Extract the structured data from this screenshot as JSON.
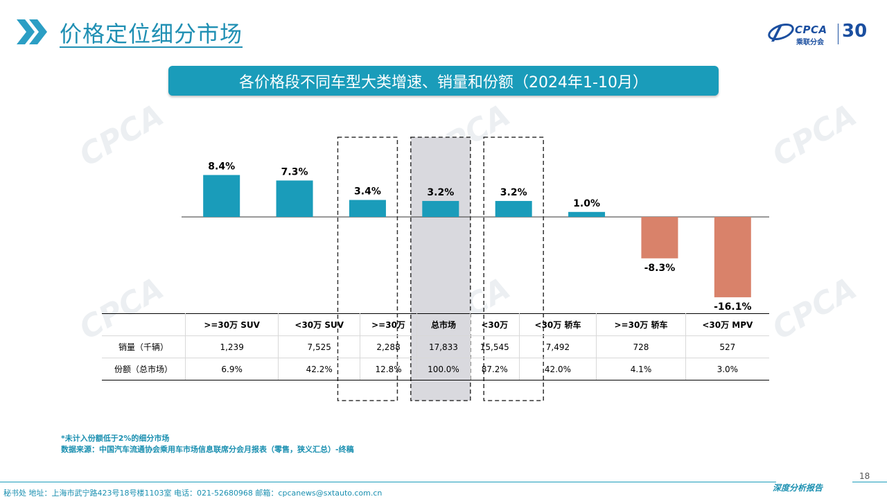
{
  "header": {
    "title": "价格定位细分市场",
    "logo_text": "CPCA",
    "logo_sub": "乘联分会",
    "anniversary": "30"
  },
  "watermark_text": "CPCA",
  "chart_data": {
    "type": "bar",
    "title": "各价格段不同车型大类增速、销量和份额（2024年1-10月）",
    "categories": [
      ">=30万 SUV",
      "<30万 SUV",
      ">=30万",
      "总市场",
      "<30万",
      "<30万 轿车",
      ">=30万 轿车",
      "<30万 MPV"
    ],
    "values": [
      8.4,
      7.3,
      3.4,
      3.2,
      3.2,
      1.0,
      -8.3,
      -16.1
    ],
    "value_labels": [
      "8.4%",
      "7.3%",
      "3.4%",
      "3.2%",
      "3.2%",
      "1.0%",
      "-8.3%",
      "-16.1%"
    ],
    "unit": "%",
    "highlighted_columns": [
      ">=30万",
      "总市场",
      "<30万"
    ],
    "colors": {
      "positive": "#1a9cba",
      "negative": "#d9826a",
      "highlight_fill": "#d9d9de"
    },
    "grid": false,
    "legend": "none",
    "table": {
      "rows": [
        {
          "label": "销量（千辆）",
          "values": [
            "1,239",
            "7,525",
            "2,288",
            "17,833",
            "15,545",
            "7,492",
            "728",
            "527"
          ]
        },
        {
          "label": "份额（总市场）",
          "values": [
            "6.9%",
            "42.2%",
            "12.8%",
            "100.0%",
            "87.2%",
            "42.0%",
            "4.1%",
            "3.0%"
          ]
        }
      ]
    }
  },
  "footnotes": {
    "note": "*未计入份额低于2%的细分市场",
    "source": "数据来源：中国汽车流通协会乘用车市场信息联席分会月报表（零售，狭义汇总）-终稿"
  },
  "footer": {
    "contact": "秘书处   地址：上海市武宁路423号18号楼1103室  电话：021-52680968   邮箱：cpcanews@sxtauto.com.cn",
    "report": "深度分析报告",
    "page_number": "18"
  }
}
